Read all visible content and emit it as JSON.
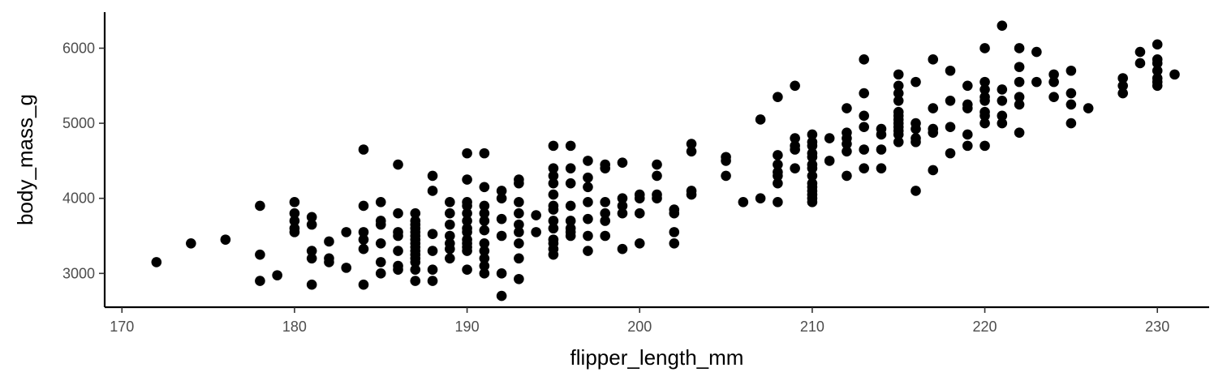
{
  "chart_data": {
    "type": "scatter",
    "title": "",
    "xlabel": "flipper_length_mm",
    "ylabel": "body_mass_g",
    "xlim": [
      169,
      233
    ],
    "ylim": [
      2550,
      6480
    ],
    "x_ticks": [
      170,
      180,
      190,
      200,
      210,
      220,
      230
    ],
    "y_ticks": [
      3000,
      4000,
      5000,
      6000
    ],
    "grid": false,
    "legend": "none",
    "point_color": "#000000",
    "points": [
      [
        172,
        3150
      ],
      [
        174,
        3400
      ],
      [
        176,
        3450
      ],
      [
        178,
        3900
      ],
      [
        178,
        3250
      ],
      [
        178,
        2900
      ],
      [
        179,
        2975
      ],
      [
        180,
        3950
      ],
      [
        180,
        3800
      ],
      [
        180,
        3700
      ],
      [
        180,
        3600
      ],
      [
        180,
        3550
      ],
      [
        181,
        3750
      ],
      [
        181,
        3650
      ],
      [
        181,
        3300
      ],
      [
        181,
        3200
      ],
      [
        181,
        2850
      ],
      [
        182,
        3425
      ],
      [
        182,
        3200
      ],
      [
        182,
        3150
      ],
      [
        183,
        3550
      ],
      [
        183,
        3075
      ],
      [
        184,
        4650
      ],
      [
        184,
        3900
      ],
      [
        184,
        3550
      ],
      [
        184,
        3450
      ],
      [
        184,
        3325
      ],
      [
        184,
        2850
      ],
      [
        185,
        3950
      ],
      [
        185,
        3700
      ],
      [
        185,
        3650
      ],
      [
        185,
        3400
      ],
      [
        185,
        3150
      ],
      [
        185,
        3000
      ],
      [
        186,
        4450
      ],
      [
        186,
        3800
      ],
      [
        186,
        3550
      ],
      [
        186,
        3500
      ],
      [
        186,
        3300
      ],
      [
        186,
        3100
      ],
      [
        186,
        3050
      ],
      [
        187,
        3800
      ],
      [
        187,
        3700
      ],
      [
        187,
        3650
      ],
      [
        187,
        3600
      ],
      [
        187,
        3550
      ],
      [
        187,
        3500
      ],
      [
        187,
        3450
      ],
      [
        187,
        3400
      ],
      [
        187,
        3350
      ],
      [
        187,
        3300
      ],
      [
        187,
        3250
      ],
      [
        187,
        3200
      ],
      [
        187,
        3150
      ],
      [
        187,
        3050
      ],
      [
        187,
        2900
      ],
      [
        188,
        4300
      ],
      [
        188,
        4100
      ],
      [
        188,
        3525
      ],
      [
        188,
        3300
      ],
      [
        188,
        3050
      ],
      [
        188,
        2900
      ],
      [
        189,
        3950
      ],
      [
        189,
        3800
      ],
      [
        189,
        3650
      ],
      [
        189,
        3500
      ],
      [
        189,
        3400
      ],
      [
        189,
        3325
      ],
      [
        189,
        3200
      ],
      [
        190,
        4600
      ],
      [
        190,
        4250
      ],
      [
        190,
        3950
      ],
      [
        190,
        3900
      ],
      [
        190,
        3800
      ],
      [
        190,
        3700
      ],
      [
        190,
        3600
      ],
      [
        190,
        3550
      ],
      [
        190,
        3450
      ],
      [
        190,
        3400
      ],
      [
        190,
        3350
      ],
      [
        190,
        3300
      ],
      [
        190,
        3050
      ],
      [
        191,
        4600
      ],
      [
        191,
        4150
      ],
      [
        191,
        3900
      ],
      [
        191,
        3800
      ],
      [
        191,
        3700
      ],
      [
        191,
        3575
      ],
      [
        191,
        3400
      ],
      [
        191,
        3300
      ],
      [
        191,
        3200
      ],
      [
        191,
        3100
      ],
      [
        191,
        3000
      ],
      [
        192,
        4100
      ],
      [
        192,
        4000
      ],
      [
        192,
        3725
      ],
      [
        192,
        3500
      ],
      [
        192,
        3000
      ],
      [
        192,
        2700
      ],
      [
        193,
        4250
      ],
      [
        193,
        4200
      ],
      [
        193,
        3950
      ],
      [
        193,
        3800
      ],
      [
        193,
        3650
      ],
      [
        193,
        3550
      ],
      [
        193,
        3400
      ],
      [
        193,
        3200
      ],
      [
        193,
        2925
      ],
      [
        194,
        3775
      ],
      [
        194,
        3550
      ],
      [
        195,
        4700
      ],
      [
        195,
        4400
      ],
      [
        195,
        4300
      ],
      [
        195,
        4200
      ],
      [
        195,
        4050
      ],
      [
        195,
        3900
      ],
      [
        195,
        3850
      ],
      [
        195,
        3700
      ],
      [
        195,
        3600
      ],
      [
        195,
        3450
      ],
      [
        195,
        3400
      ],
      [
        195,
        3325
      ],
      [
        195,
        3250
      ],
      [
        196,
        4700
      ],
      [
        196,
        4400
      ],
      [
        196,
        4200
      ],
      [
        196,
        3900
      ],
      [
        196,
        3700
      ],
      [
        196,
        3600
      ],
      [
        196,
        3550
      ],
      [
        196,
        3500
      ],
      [
        197,
        4500
      ],
      [
        197,
        4275
      ],
      [
        197,
        4150
      ],
      [
        197,
        3950
      ],
      [
        197,
        3725
      ],
      [
        197,
        3500
      ],
      [
        197,
        3300
      ],
      [
        198,
        4450
      ],
      [
        198,
        4400
      ],
      [
        198,
        3950
      ],
      [
        198,
        3800
      ],
      [
        198,
        3700
      ],
      [
        198,
        3500
      ],
      [
        199,
        4475
      ],
      [
        199,
        4000
      ],
      [
        199,
        3900
      ],
      [
        199,
        3800
      ],
      [
        199,
        3325
      ],
      [
        200,
        4050
      ],
      [
        200,
        4000
      ],
      [
        200,
        3800
      ],
      [
        200,
        3400
      ],
      [
        201,
        4450
      ],
      [
        201,
        4300
      ],
      [
        201,
        4050
      ],
      [
        201,
        4000
      ],
      [
        202,
        3850
      ],
      [
        202,
        3800
      ],
      [
        202,
        3550
      ],
      [
        202,
        3400
      ],
      [
        203,
        4725
      ],
      [
        203,
        4625
      ],
      [
        203,
        4100
      ],
      [
        203,
        4050
      ],
      [
        205,
        4550
      ],
      [
        205,
        4500
      ],
      [
        205,
        4300
      ],
      [
        206,
        3950
      ],
      [
        207,
        5050
      ],
      [
        207,
        4000
      ],
      [
        208,
        5350
      ],
      [
        208,
        4575
      ],
      [
        208,
        4450
      ],
      [
        208,
        4350
      ],
      [
        208,
        4300
      ],
      [
        208,
        4200
      ],
      [
        208,
        3950
      ],
      [
        209,
        5500
      ],
      [
        209,
        4800
      ],
      [
        209,
        4700
      ],
      [
        209,
        4650
      ],
      [
        209,
        4400
      ],
      [
        210,
        4850
      ],
      [
        210,
        4750
      ],
      [
        210,
        4700
      ],
      [
        210,
        4600
      ],
      [
        210,
        4550
      ],
      [
        210,
        4450
      ],
      [
        210,
        4400
      ],
      [
        210,
        4300
      ],
      [
        210,
        4200
      ],
      [
        210,
        4150
      ],
      [
        210,
        4100
      ],
      [
        210,
        4050
      ],
      [
        210,
        4000
      ],
      [
        210,
        3950
      ],
      [
        211,
        4800
      ],
      [
        211,
        4500
      ],
      [
        212,
        5200
      ],
      [
        212,
        4875
      ],
      [
        212,
        4800
      ],
      [
        212,
        4725
      ],
      [
        212,
        4625
      ],
      [
        212,
        4300
      ],
      [
        213,
        5850
      ],
      [
        213,
        5400
      ],
      [
        213,
        5100
      ],
      [
        213,
        4950
      ],
      [
        213,
        4650
      ],
      [
        213,
        4400
      ],
      [
        214,
        4925
      ],
      [
        214,
        4850
      ],
      [
        214,
        4650
      ],
      [
        214,
        4400
      ],
      [
        215,
        5650
      ],
      [
        215,
        5500
      ],
      [
        215,
        5400
      ],
      [
        215,
        5300
      ],
      [
        215,
        5150
      ],
      [
        215,
        5100
      ],
      [
        215,
        5050
      ],
      [
        215,
        5000
      ],
      [
        215,
        4950
      ],
      [
        215,
        4900
      ],
      [
        215,
        4850
      ],
      [
        215,
        4750
      ],
      [
        216,
        5550
      ],
      [
        216,
        5000
      ],
      [
        216,
        4925
      ],
      [
        216,
        4800
      ],
      [
        216,
        4750
      ],
      [
        216,
        4100
      ],
      [
        217,
        5850
      ],
      [
        217,
        5200
      ],
      [
        217,
        4925
      ],
      [
        217,
        4875
      ],
      [
        217,
        4375
      ],
      [
        218,
        5700
      ],
      [
        218,
        5300
      ],
      [
        218,
        4950
      ],
      [
        218,
        4600
      ],
      [
        219,
        5500
      ],
      [
        219,
        5250
      ],
      [
        219,
        5200
      ],
      [
        219,
        4850
      ],
      [
        219,
        4700
      ],
      [
        220,
        6000
      ],
      [
        220,
        5550
      ],
      [
        220,
        5450
      ],
      [
        220,
        5350
      ],
      [
        220,
        5300
      ],
      [
        220,
        5150
      ],
      [
        220,
        5100
      ],
      [
        220,
        5000
      ],
      [
        220,
        4700
      ],
      [
        221,
        6300
      ],
      [
        221,
        5450
      ],
      [
        221,
        5300
      ],
      [
        221,
        5100
      ],
      [
        221,
        5000
      ],
      [
        222,
        6000
      ],
      [
        222,
        5750
      ],
      [
        222,
        5550
      ],
      [
        222,
        5350
      ],
      [
        222,
        5250
      ],
      [
        222,
        4875
      ],
      [
        223,
        5950
      ],
      [
        223,
        5550
      ],
      [
        224,
        5650
      ],
      [
        224,
        5550
      ],
      [
        224,
        5350
      ],
      [
        225,
        5700
      ],
      [
        225,
        5400
      ],
      [
        225,
        5250
      ],
      [
        225,
        5000
      ],
      [
        226,
        5200
      ],
      [
        228,
        5600
      ],
      [
        228,
        5500
      ],
      [
        228,
        5400
      ],
      [
        229,
        5950
      ],
      [
        229,
        5800
      ],
      [
        230,
        6050
      ],
      [
        230,
        5850
      ],
      [
        230,
        5800
      ],
      [
        230,
        5700
      ],
      [
        230,
        5600
      ],
      [
        230,
        5550
      ],
      [
        230,
        5500
      ],
      [
        231,
        5650
      ]
    ]
  }
}
